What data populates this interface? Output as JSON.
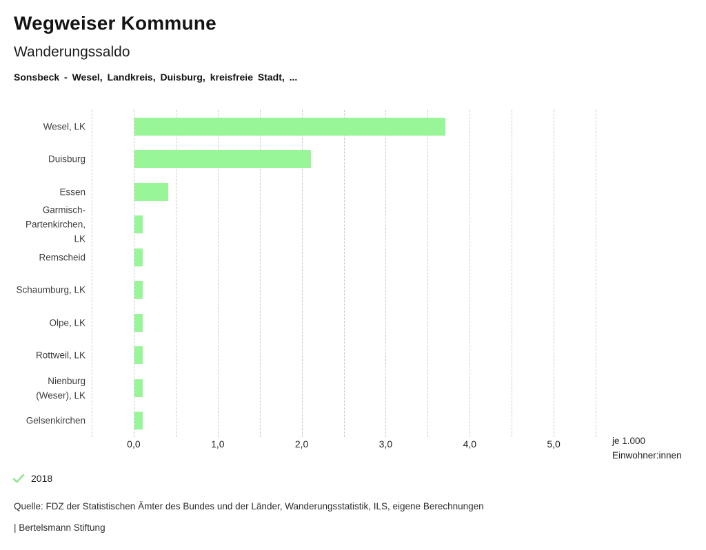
{
  "header": {
    "title": "Wegweiser Kommune",
    "subtitle": "Wanderungssaldo",
    "selection": "Sonsbeck - Wesel, Landkreis, Duisburg, kreisfreie Stadt, ..."
  },
  "chart_data": {
    "type": "bar",
    "orientation": "horizontal",
    "title": "Wanderungssaldo",
    "categories": [
      "Wesel, LK",
      "Duisburg",
      "Essen",
      "Garmisch-\nPartenkirchen,\nLK",
      "Remscheid",
      "Schaumburg, LK",
      "Olpe, LK",
      "Rottweil, LK",
      "Nienburg\n(Weser), LK",
      "Gelsenkirchen"
    ],
    "values": [
      3.7,
      2.1,
      0.4,
      0.1,
      0.1,
      0.1,
      0.1,
      0.1,
      0.1,
      0.1
    ],
    "year": "2018",
    "xlim": [
      -0.5,
      5.5
    ],
    "grid_step": 0.5,
    "grid": "vertical-dashed",
    "legend_position": "bottom-left",
    "xticks": [
      {
        "v": 0,
        "label": "0,0"
      },
      {
        "v": 1,
        "label": "1,0"
      },
      {
        "v": 2,
        "label": "2,0"
      },
      {
        "v": 3,
        "label": "3,0"
      },
      {
        "v": 4,
        "label": "4,0"
      },
      {
        "v": 5,
        "label": "5,0"
      }
    ],
    "unit_line1": "je 1.000",
    "unit_line2": "Einwohner:innen",
    "bar_color": "#98f598"
  },
  "legend": {
    "year": "2018",
    "check_color": "#8fe88f"
  },
  "footer": {
    "source": "Quelle: FDZ der Statistischen Ämter des Bundes und der Länder, Wanderungsstatistik, ILS, eigene Berechnungen",
    "brand": "| Bertelsmann Stiftung"
  }
}
